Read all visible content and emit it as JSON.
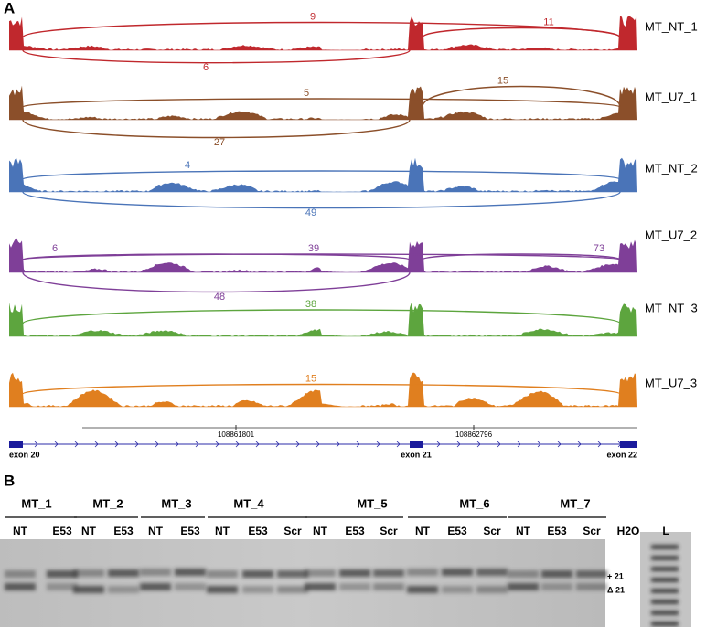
{
  "panel_a": {
    "label": "A",
    "tracks": [
      {
        "name": "MT_NT_1",
        "color": "#c0282d",
        "junctions": [
          9,
          11,
          6
        ]
      },
      {
        "name": "MT_U7_1",
        "color": "#8b4f2a",
        "junctions": [
          5,
          15,
          27
        ]
      },
      {
        "name": "MT_NT_2",
        "color": "#4a74b8",
        "junctions": [
          4,
          49
        ]
      },
      {
        "name": "MT_U7_2",
        "color": "#7f3f98",
        "junctions": [
          6,
          39,
          73,
          48
        ]
      },
      {
        "name": "MT_NT_3",
        "color": "#5da53e",
        "junctions": [
          38
        ]
      },
      {
        "name": "MT_U7_3",
        "color": "#e07f1f",
        "junctions": [
          15
        ]
      }
    ],
    "coordinates": [
      108861801,
      108862796
    ],
    "exons": [
      "exon 20",
      "exon 21",
      "exon 22"
    ]
  },
  "panel_b": {
    "label": "B",
    "groups": [
      {
        "name": "MT_1",
        "lanes": [
          "NT",
          "E53"
        ]
      },
      {
        "name": "MT_2",
        "lanes": [
          "NT",
          "E53"
        ]
      },
      {
        "name": "MT_3",
        "lanes": [
          "NT",
          "E53"
        ]
      },
      {
        "name": "MT_4",
        "lanes": [
          "NT",
          "E53",
          "Scr"
        ]
      },
      {
        "name": "MT_5",
        "lanes": [
          "NT",
          "E53",
          "Scr"
        ]
      },
      {
        "name": "MT_6",
        "lanes": [
          "NT",
          "E53",
          "Scr"
        ]
      },
      {
        "name": "MT_7",
        "lanes": [
          "NT",
          "E53",
          "Scr"
        ]
      }
    ],
    "extra_lanes": [
      "H2O",
      "L"
    ],
    "band_labels": [
      "+ 21",
      "Δ 21"
    ]
  }
}
